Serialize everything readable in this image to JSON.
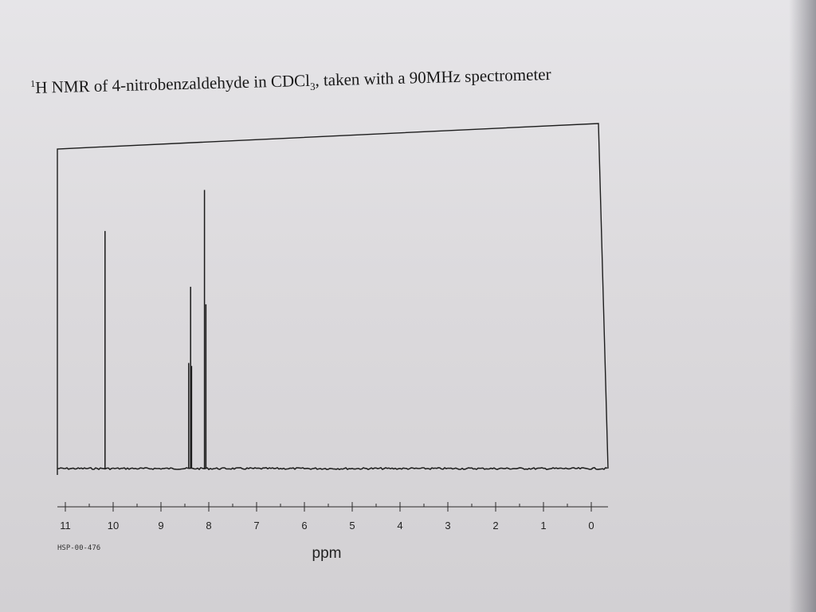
{
  "chart_data": {
    "type": "line",
    "title_parts": {
      "pre": "H NMR of 4-nitrobenzaldehyde in CDCl",
      "sup": "1",
      "sub": "3",
      "post": ", taken with a 90MHz spectrometer"
    },
    "xlabel": "ppm",
    "ylabel": "",
    "x_reversed": true,
    "xlim": [
      11,
      0
    ],
    "ylim": [
      0,
      1
    ],
    "xticks": [
      11,
      10,
      9,
      8,
      7,
      6,
      5,
      4,
      3,
      2,
      1,
      0
    ],
    "peaks": [
      {
        "x": 10.17,
        "y": 0.81
      },
      {
        "x": 8.42,
        "y": 0.36
      },
      {
        "x": 8.38,
        "y": 0.62
      },
      {
        "x": 8.36,
        "y": 0.35
      },
      {
        "x": 8.09,
        "y": 0.95
      },
      {
        "x": 8.06,
        "y": 0.56
      }
    ],
    "grid": false,
    "code": "HSP-00-476"
  }
}
